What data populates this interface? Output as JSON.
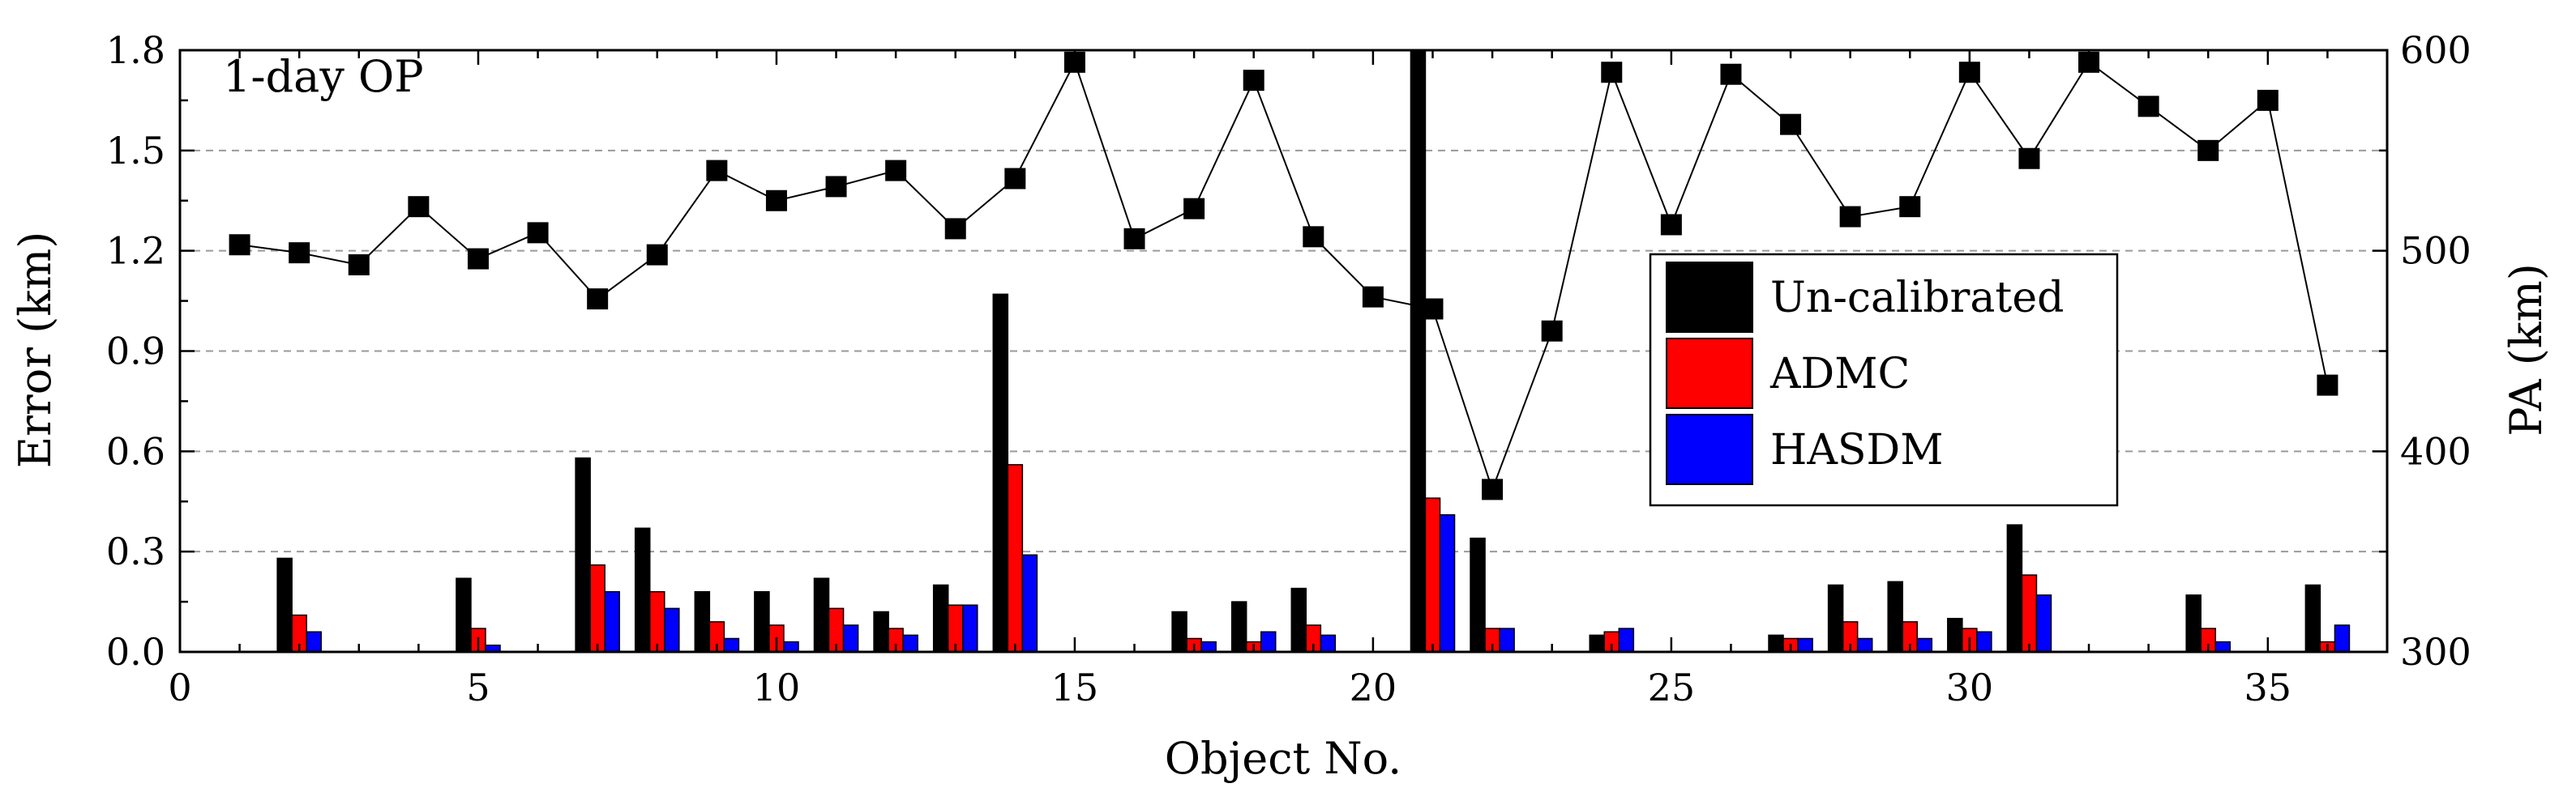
{
  "chart_data": {
    "type": "bar+line",
    "annotation": "1-day OP",
    "xlabel": "Object No.",
    "ylabel_left": "Error (km)",
    "ylabel_right": "PA (km)",
    "xlim": [
      0,
      37
    ],
    "ylim_left": [
      0,
      1.8
    ],
    "ylim_right": [
      300,
      600
    ],
    "xticks": [
      0,
      5,
      10,
      15,
      20,
      25,
      30,
      35
    ],
    "yticks_left": [
      0.0,
      0.3,
      0.6,
      0.9,
      1.2,
      1.5,
      1.8
    ],
    "yticks_left_labels": [
      "0.0",
      "0.3",
      "0.6",
      "0.9",
      "1.2",
      "1.5",
      "1.8"
    ],
    "yticks_right": [
      300,
      400,
      500,
      600
    ],
    "grid": "horizontal dashed",
    "legend_position": "center-right",
    "bar_series": [
      {
        "name": "Un-calibrated",
        "color": "#000000",
        "values": [
          [
            2,
            0.28
          ],
          [
            5,
            0.22
          ],
          [
            7,
            0.58
          ],
          [
            8,
            0.37
          ],
          [
            9,
            0.18
          ],
          [
            10,
            0.18
          ],
          [
            11,
            0.22
          ],
          [
            12,
            0.12
          ],
          [
            13,
            0.2
          ],
          [
            14,
            1.07
          ],
          [
            17,
            0.12
          ],
          [
            18,
            0.15
          ],
          [
            19,
            0.19
          ],
          [
            21,
            1.8
          ],
          [
            22,
            0.34
          ],
          [
            24,
            0.05
          ],
          [
            27,
            0.05
          ],
          [
            28,
            0.2
          ],
          [
            29,
            0.21
          ],
          [
            30,
            0.1
          ],
          [
            31,
            0.38
          ],
          [
            34,
            0.17
          ],
          [
            36,
            0.2
          ]
        ]
      },
      {
        "name": "ADMC",
        "color": "#ff0000",
        "values": [
          [
            2,
            0.11
          ],
          [
            5,
            0.07
          ],
          [
            7,
            0.26
          ],
          [
            8,
            0.18
          ],
          [
            9,
            0.09
          ],
          [
            10,
            0.08
          ],
          [
            11,
            0.13
          ],
          [
            12,
            0.07
          ],
          [
            13,
            0.14
          ],
          [
            14,
            0.56
          ],
          [
            17,
            0.04
          ],
          [
            18,
            0.03
          ],
          [
            19,
            0.08
          ],
          [
            21,
            0.46
          ],
          [
            22,
            0.07
          ],
          [
            24,
            0.06
          ],
          [
            27,
            0.04
          ],
          [
            28,
            0.09
          ],
          [
            29,
            0.09
          ],
          [
            30,
            0.07
          ],
          [
            31,
            0.23
          ],
          [
            34,
            0.07
          ],
          [
            36,
            0.03
          ]
        ]
      },
      {
        "name": "HASDM",
        "color": "#0000ff",
        "values": [
          [
            2,
            0.06
          ],
          [
            5,
            0.02
          ],
          [
            7,
            0.18
          ],
          [
            8,
            0.13
          ],
          [
            9,
            0.04
          ],
          [
            10,
            0.03
          ],
          [
            11,
            0.08
          ],
          [
            12,
            0.05
          ],
          [
            13,
            0.14
          ],
          [
            14,
            0.29
          ],
          [
            17,
            0.03
          ],
          [
            18,
            0.06
          ],
          [
            19,
            0.05
          ],
          [
            21,
            0.41
          ],
          [
            22,
            0.07
          ],
          [
            24,
            0.07
          ],
          [
            27,
            0.04
          ],
          [
            28,
            0.04
          ],
          [
            29,
            0.04
          ],
          [
            30,
            0.06
          ],
          [
            31,
            0.17
          ],
          [
            34,
            0.03
          ],
          [
            36,
            0.08
          ]
        ]
      }
    ],
    "line_series": {
      "axis": "right",
      "color": "#000000",
      "marker": "square",
      "x": [
        1,
        2,
        3,
        4,
        5,
        6,
        7,
        8,
        9,
        10,
        11,
        12,
        13,
        14,
        15,
        16,
        17,
        18,
        19,
        20,
        21,
        22,
        23,
        24,
        25,
        26,
        27,
        28,
        29,
        30,
        31,
        32,
        33,
        34,
        35,
        36
      ],
      "y": [
        503,
        499,
        493,
        522,
        496,
        509,
        476,
        498,
        540,
        525,
        532,
        540,
        511,
        536,
        594,
        506,
        521,
        585,
        507,
        477,
        471,
        381,
        460,
        589,
        513,
        588,
        563,
        517,
        522,
        589,
        546,
        594,
        572,
        550,
        575,
        433
      ]
    }
  }
}
